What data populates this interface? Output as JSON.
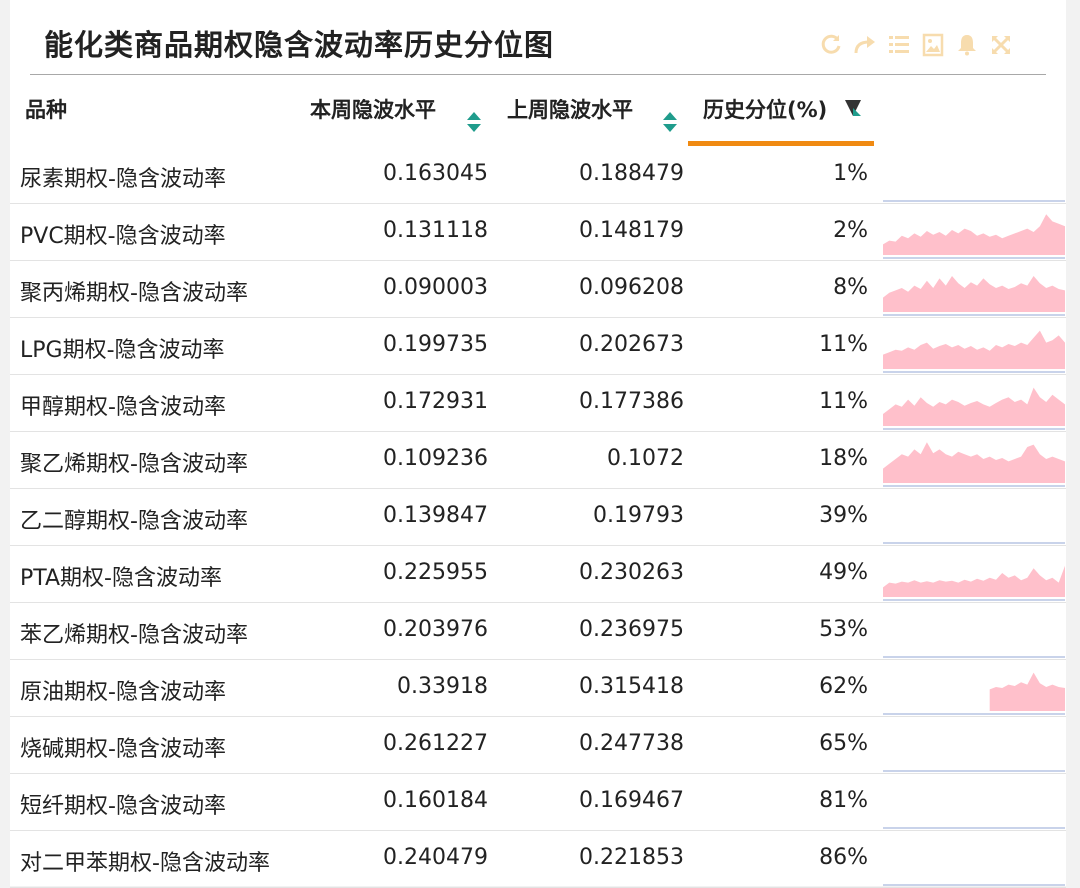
{
  "page": {
    "title": "能化类商品期权隐含波动率历史分位图"
  },
  "toolbar": {
    "icons": [
      "refresh-icon",
      "redo-icon",
      "list-icon",
      "image-icon",
      "bell-icon",
      "fullscreen-icon"
    ],
    "icon_color": "#f7dcae"
  },
  "table": {
    "headers": {
      "name": "品种",
      "current": "本周隐波水平",
      "previous": "上周隐波水平",
      "percentile": "历史分位(%)"
    },
    "sort_colors": {
      "up": "#1f9c8c",
      "down": "#1f9c8c",
      "active": "#333333"
    },
    "active_underline_color": "#f08a12",
    "spark_fill": "#ffc0cb",
    "rows": [
      {
        "name": "尿素期权-隐含波动率",
        "current": "0.163045",
        "previous": "0.188479",
        "percentile": "1%",
        "trend": []
      },
      {
        "name": "PVC期权-隐含波动率",
        "current": "0.131118",
        "previous": "0.148179",
        "percentile": "2%",
        "trend": [
          0.22,
          0.3,
          0.28,
          0.4,
          0.35,
          0.45,
          0.38,
          0.5,
          0.42,
          0.48,
          0.4,
          0.52,
          0.45,
          0.55,
          0.5,
          0.4,
          0.45,
          0.38,
          0.42,
          0.35,
          0.4,
          0.45,
          0.5,
          0.55,
          0.48,
          0.6,
          0.85,
          0.7,
          0.65,
          0.6
        ]
      },
      {
        "name": "聚丙烯期权-隐含波动率",
        "current": "0.090003",
        "previous": "0.096208",
        "percentile": "8%",
        "trend": [
          0.3,
          0.4,
          0.45,
          0.5,
          0.42,
          0.55,
          0.48,
          0.65,
          0.5,
          0.7,
          0.55,
          0.75,
          0.6,
          0.5,
          0.62,
          0.55,
          0.7,
          0.58,
          0.5,
          0.55,
          0.48,
          0.52,
          0.6,
          0.55,
          0.75,
          0.6,
          0.5,
          0.55,
          0.48,
          0.45
        ]
      },
      {
        "name": "LPG期权-隐含波动率",
        "current": "0.199735",
        "previous": "0.202673",
        "percentile": "11%",
        "trend": [
          0.3,
          0.35,
          0.4,
          0.38,
          0.45,
          0.4,
          0.5,
          0.55,
          0.42,
          0.48,
          0.52,
          0.45,
          0.5,
          0.42,
          0.48,
          0.4,
          0.45,
          0.38,
          0.5,
          0.45,
          0.52,
          0.48,
          0.55,
          0.5,
          0.65,
          0.8,
          0.55,
          0.6,
          0.7,
          0.55
        ]
      },
      {
        "name": "甲醇期权-隐含波动率",
        "current": "0.172931",
        "previous": "0.177386",
        "percentile": "11%",
        "trend": [
          0.25,
          0.35,
          0.45,
          0.4,
          0.55,
          0.42,
          0.6,
          0.48,
          0.4,
          0.5,
          0.45,
          0.55,
          0.5,
          0.42,
          0.48,
          0.52,
          0.45,
          0.4,
          0.48,
          0.55,
          0.6,
          0.5,
          0.55,
          0.45,
          0.8,
          0.6,
          0.5,
          0.65,
          0.55,
          0.45
        ]
      },
      {
        "name": "聚乙烯期权-隐含波动率",
        "current": "0.109236",
        "previous": "0.1072",
        "percentile": "18%",
        "trend": [
          0.3,
          0.4,
          0.5,
          0.6,
          0.55,
          0.7,
          0.6,
          0.85,
          0.62,
          0.7,
          0.6,
          0.55,
          0.65,
          0.6,
          0.55,
          0.6,
          0.5,
          0.55,
          0.48,
          0.52,
          0.45,
          0.5,
          0.55,
          0.75,
          0.8,
          0.6,
          0.5,
          0.55,
          0.5,
          0.45
        ]
      },
      {
        "name": "乙二醇期权-隐含波动率",
        "current": "0.139847",
        "previous": "0.19793",
        "percentile": "39%",
        "trend": []
      },
      {
        "name": "PTA期权-隐含波动率",
        "current": "0.225955",
        "previous": "0.230263",
        "percentile": "49%",
        "trend": [
          0.2,
          0.3,
          0.28,
          0.32,
          0.3,
          0.35,
          0.3,
          0.33,
          0.3,
          0.35,
          0.32,
          0.34,
          0.3,
          0.36,
          0.32,
          0.38,
          0.34,
          0.4,
          0.36,
          0.5,
          0.4,
          0.45,
          0.35,
          0.4,
          0.6,
          0.45,
          0.35,
          0.4,
          0.3,
          0.65
        ]
      },
      {
        "name": "苯乙烯期权-隐含波动率",
        "current": "0.203976",
        "previous": "0.236975",
        "percentile": "53%",
        "trend": []
      },
      {
        "name": "原油期权-隐含波动率",
        "current": "0.33918",
        "previous": "0.315418",
        "percentile": "62%",
        "trend": [
          null,
          null,
          null,
          null,
          null,
          null,
          null,
          null,
          null,
          null,
          null,
          null,
          null,
          null,
          null,
          null,
          null,
          0.45,
          0.5,
          0.48,
          0.55,
          0.52,
          0.6,
          0.55,
          0.8,
          0.58,
          0.5,
          0.55,
          0.5,
          0.48
        ]
      },
      {
        "name": "烧碱期权-隐含波动率",
        "current": "0.261227",
        "previous": "0.247738",
        "percentile": "65%",
        "trend": []
      },
      {
        "name": "短纤期权-隐含波动率",
        "current": "0.160184",
        "previous": "0.169467",
        "percentile": "81%",
        "trend": []
      },
      {
        "name": "对二甲苯期权-隐含波动率",
        "current": "0.240479",
        "previous": "0.221853",
        "percentile": "86%",
        "trend": []
      }
    ]
  }
}
